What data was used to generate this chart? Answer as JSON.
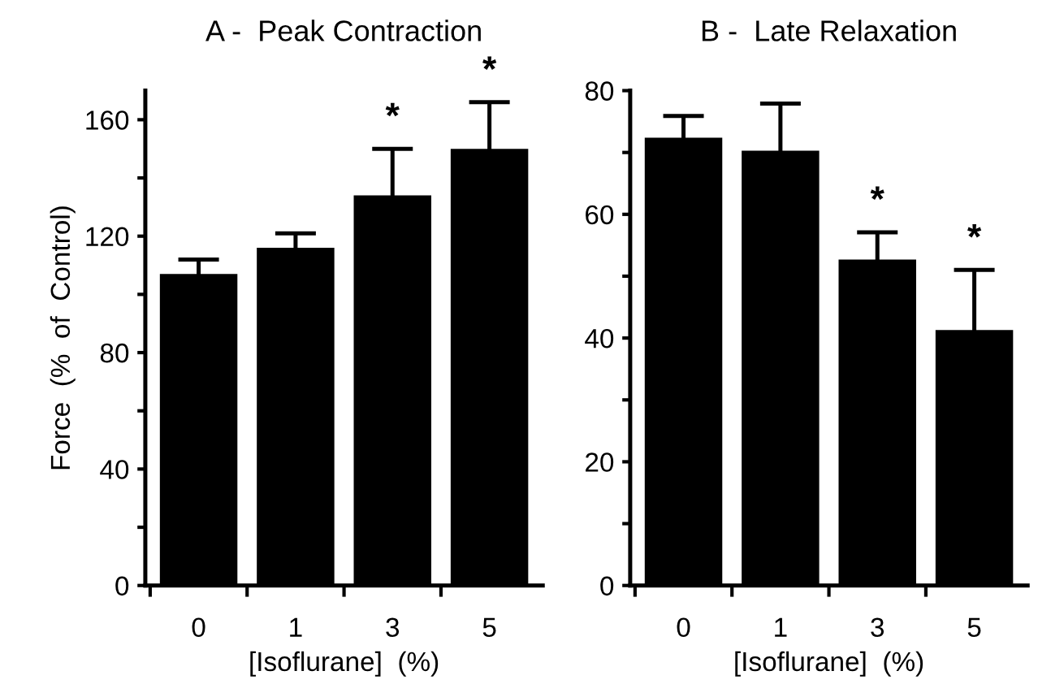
{
  "chart_data": [
    {
      "type": "bar",
      "title": "A -  Peak Contraction",
      "xlabel": "[Isoflurane]  (%)",
      "ylabel": "Force  (%  of  Control)",
      "categories": [
        "0",
        "1",
        "3",
        "5"
      ],
      "values": [
        107,
        116,
        134,
        150
      ],
      "errors": [
        5,
        5,
        16,
        16
      ],
      "color": "#000000",
      "ylim": [
        0,
        170
      ],
      "yticks": [
        0,
        {
          "value": 20,
          "label": null
        },
        40,
        {
          "value": 60,
          "label": null
        },
        80,
        {
          "value": 100,
          "label": null
        },
        120,
        {
          "value": 140,
          "label": null
        },
        160
      ],
      "grid": false,
      "legend": false,
      "annotations": [
        {
          "text": "*",
          "x": "3",
          "y": 150
        },
        {
          "text": "*",
          "x": "5",
          "y": 166
        }
      ]
    },
    {
      "type": "bar",
      "title": "B -  Late Relaxation",
      "xlabel": "[Isoflurane]  (%)",
      "categories": [
        "0",
        "1",
        "3",
        "5"
      ],
      "values": [
        72.4,
        70.3,
        52.7,
        41.3
      ],
      "errors": [
        3.5,
        7.6,
        4.4,
        9.7
      ],
      "color": "#000000",
      "ylim": [
        0,
        80
      ],
      "yticks": [
        0,
        {
          "value": 10,
          "label": null
        },
        20,
        {
          "value": 30,
          "label": null
        },
        40,
        {
          "value": 50,
          "label": null
        },
        60,
        {
          "value": 70,
          "label": null
        },
        80
      ],
      "grid": false,
      "legend": false,
      "annotations": [
        {
          "text": "*",
          "x": "3",
          "y": 57.1
        },
        {
          "text": "*",
          "x": "5",
          "y": 51
        }
      ]
    }
  ]
}
